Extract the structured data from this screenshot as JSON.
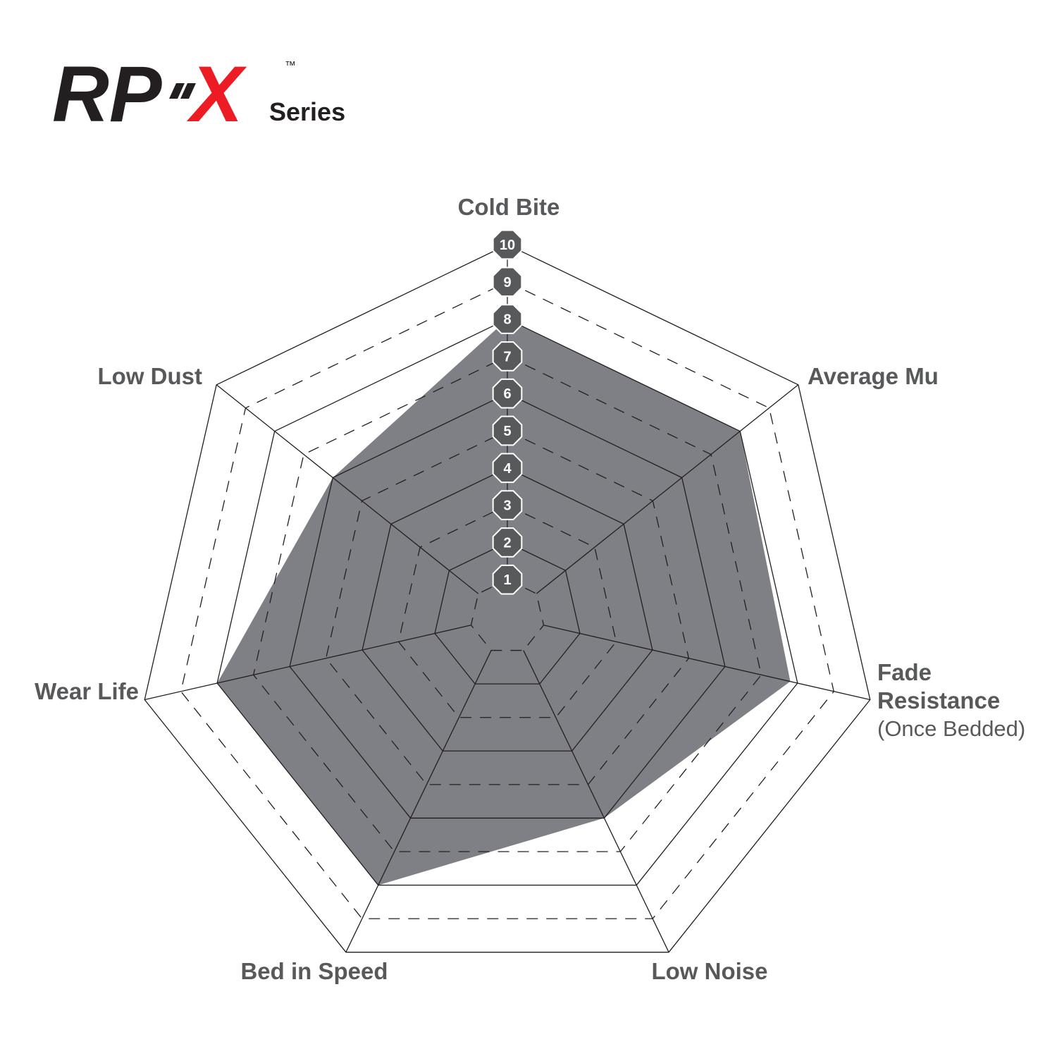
{
  "logo": {
    "main": "RP",
    "accent": "X",
    "trademark": "™",
    "suffix": "Series"
  },
  "chart_data": {
    "type": "radar",
    "categories": [
      "Cold Bite",
      "Average Mu",
      "Fade Resistance",
      "Low Noise",
      "Bed in Speed",
      "Wear Life",
      "Low Dust"
    ],
    "values": [
      8,
      8,
      7.8,
      6,
      8,
      8,
      6
    ],
    "annotations": [
      {
        "text": "(Once Bedded)"
      }
    ],
    "color": "#7f8086",
    "rlim": [
      0,
      10
    ],
    "rticks": [
      1,
      2,
      3,
      4,
      5,
      6,
      7,
      8,
      9,
      10
    ]
  }
}
